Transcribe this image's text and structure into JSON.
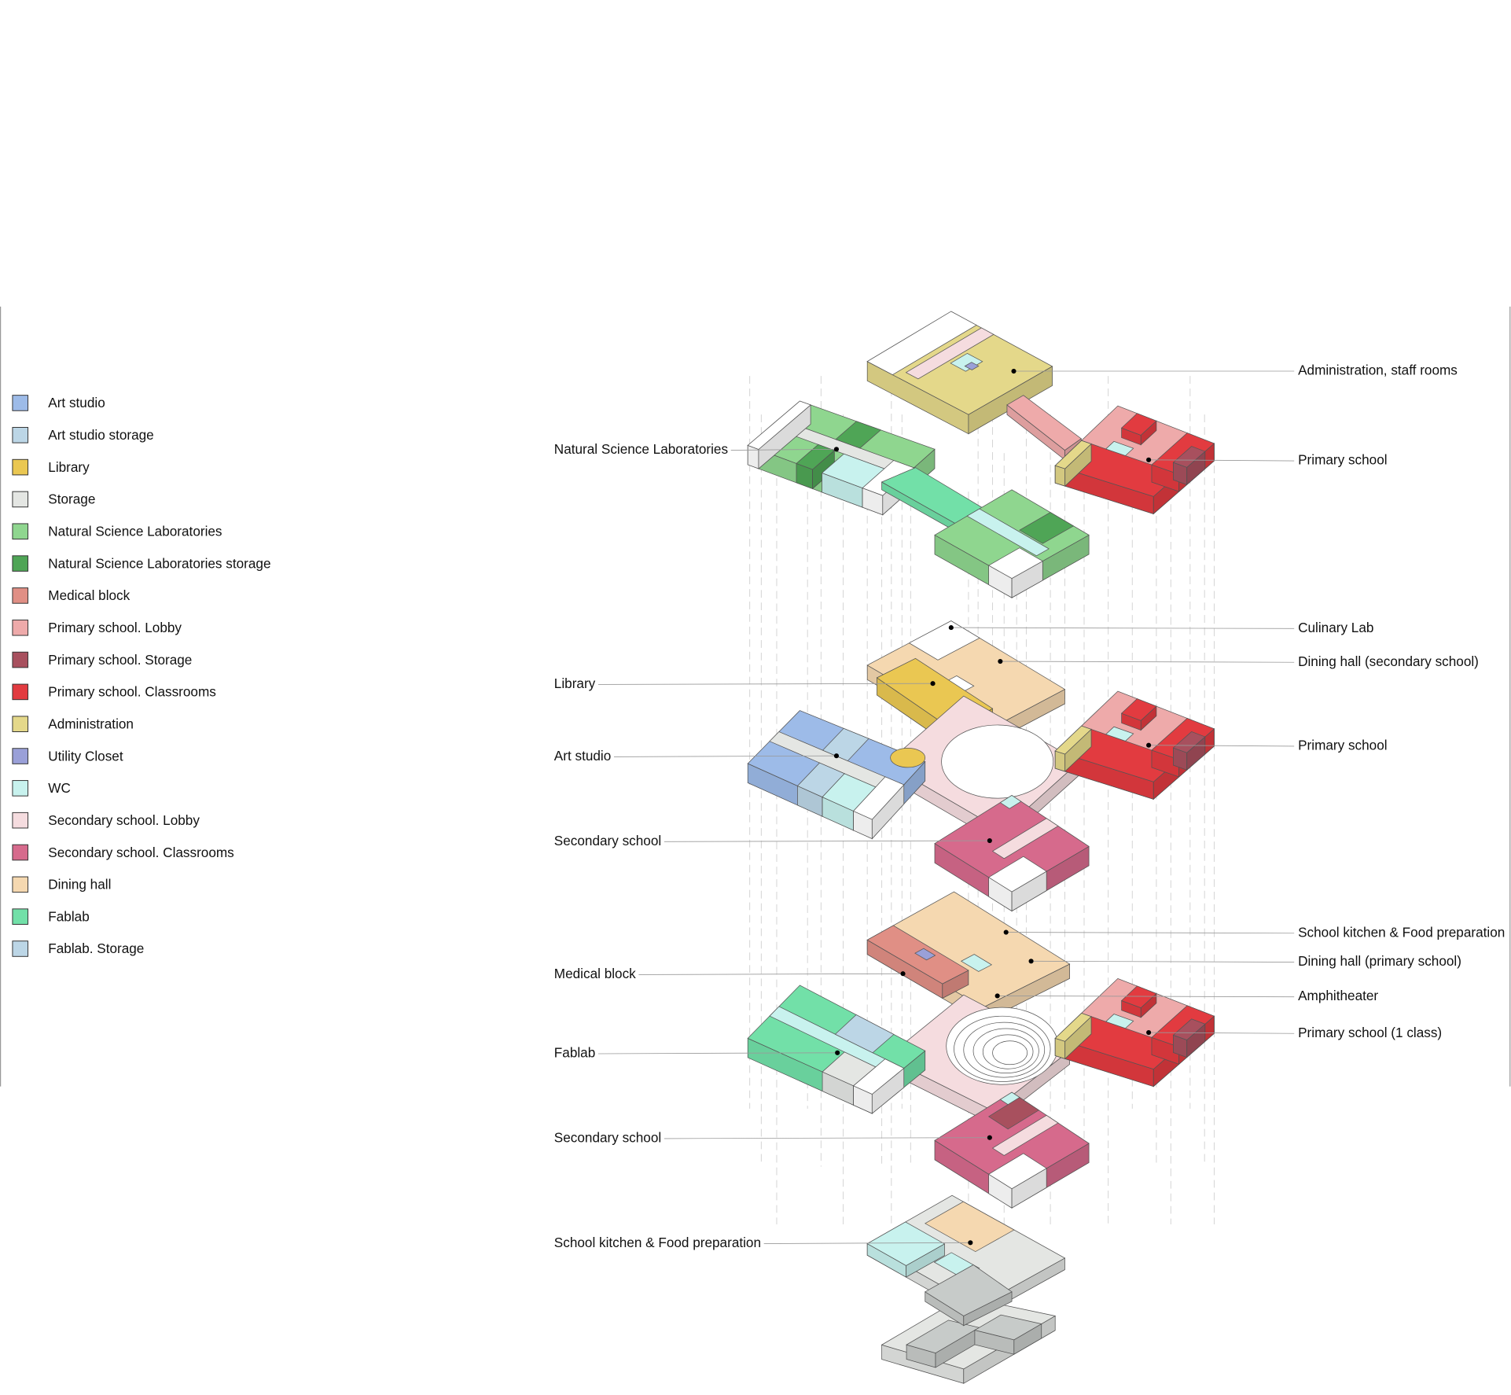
{
  "legend": [
    {
      "label": "Art studio",
      "color": "#9dbbe8"
    },
    {
      "label": "Art studio storage",
      "color": "#bcd6e6"
    },
    {
      "label": "Library",
      "color": "#eac752"
    },
    {
      "label": "Storage",
      "color": "#e4e6e3"
    },
    {
      "label": "Natural Science Laboratories",
      "color": "#8fd68f"
    },
    {
      "label": "Natural Science Laboratories storage",
      "color": "#4fa556"
    },
    {
      "label": "Medical block",
      "color": "#e08f85"
    },
    {
      "label": "Primary school. Lobby",
      "color": "#eeaaaa"
    },
    {
      "label": "Primary school. Storage",
      "color": "#a8505e"
    },
    {
      "label": "Primary school. Classrooms",
      "color": "#e23b40"
    },
    {
      "label": "Administration",
      "color": "#e4d88a"
    },
    {
      "label": "Utility Closet",
      "color": "#9aa0d8"
    },
    {
      "label": "WC",
      "color": "#c8f2ee"
    },
    {
      "label": "Secondary school. Lobby",
      "color": "#f5dcdf"
    },
    {
      "label": "Secondary school. Classrooms",
      "color": "#d66a8c"
    },
    {
      "label": "Dining hall",
      "color": "#f5d8b0"
    },
    {
      "label": "Fablab",
      "color": "#72e0a8"
    },
    {
      "label": "Fablab. Storage",
      "color": "#bcd6e6"
    }
  ],
  "left_labels": [
    "Natural Science Laboratories",
    "Library",
    "Art studio",
    "Secondary school",
    "Medical block",
    "Fablab",
    "Secondary school",
    "School kitchen & Food preparation"
  ],
  "right_labels": [
    "Administration, staff rooms",
    "Primary school",
    "Culinary Lab",
    "Dining hall (secondary school)",
    "Primary school",
    "School kitchen & Food preparation",
    "Dining hall (primary school)",
    "Amphitheater",
    "Primary school (1 class)"
  ]
}
